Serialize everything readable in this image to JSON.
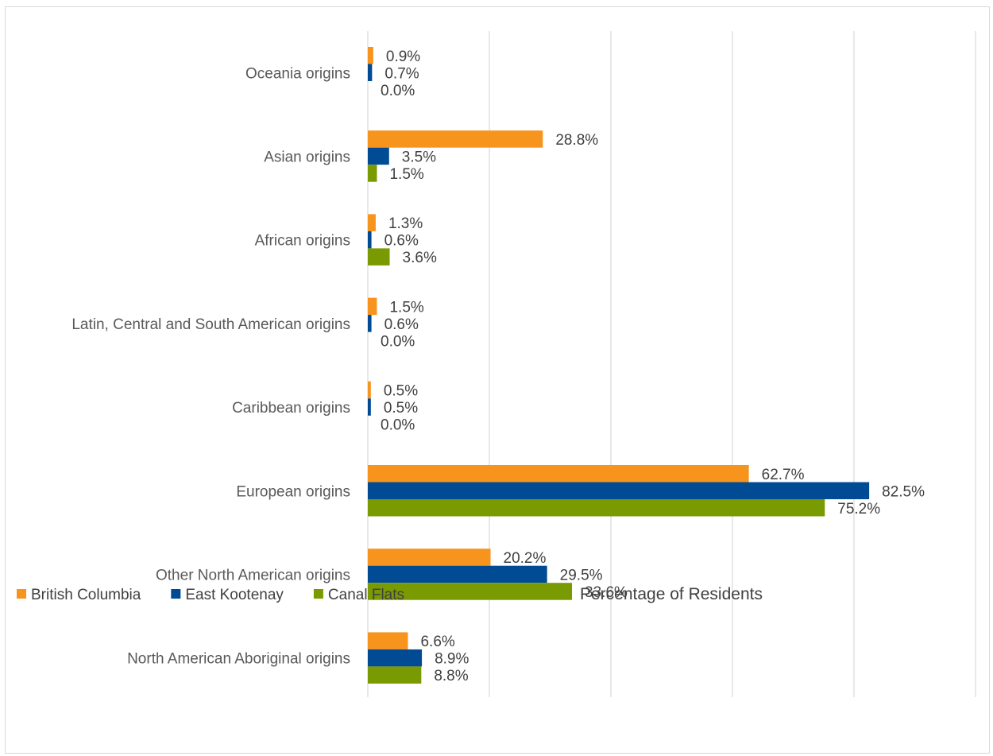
{
  "chart_data": {
    "type": "bar",
    "orientation": "horizontal",
    "title": "",
    "xlabel": "Percentage of Residents",
    "ylabel": "",
    "xlim": [
      0,
      100
    ],
    "grid": true,
    "legend_position": "bottom-left",
    "categories": [
      "North American Aboriginal origins",
      "Other North American origins",
      "European origins",
      "Caribbean origins",
      "Latin, Central and South American origins",
      "African origins",
      "Asian origins",
      "Oceania origins"
    ],
    "series": [
      {
        "name": "British Columbia",
        "color": "#f7941d",
        "values": [
          6.6,
          20.2,
          62.7,
          0.5,
          1.5,
          1.3,
          28.8,
          0.9
        ],
        "labels": [
          "6.6%",
          "20.2%",
          "62.7%",
          "0.5%",
          "1.5%",
          "1.3%",
          "28.8%",
          "0.9%"
        ]
      },
      {
        "name": "East Kootenay",
        "color": "#004b93",
        "values": [
          8.9,
          29.5,
          82.5,
          0.5,
          0.6,
          0.6,
          3.5,
          0.7
        ],
        "labels": [
          "8.9%",
          "29.5%",
          "82.5%",
          "0.5%",
          "0.6%",
          "0.6%",
          "3.5%",
          "0.7%"
        ]
      },
      {
        "name": "Canal Flats",
        "color": "#7a9a01",
        "values": [
          8.8,
          33.6,
          75.2,
          0.0,
          0.0,
          3.6,
          1.5,
          0.0
        ],
        "labels": [
          "8.8%",
          "33.6%",
          "75.2%",
          "0.0%",
          "0.0%",
          "3.6%",
          "1.5%",
          "0.0%"
        ]
      }
    ]
  }
}
